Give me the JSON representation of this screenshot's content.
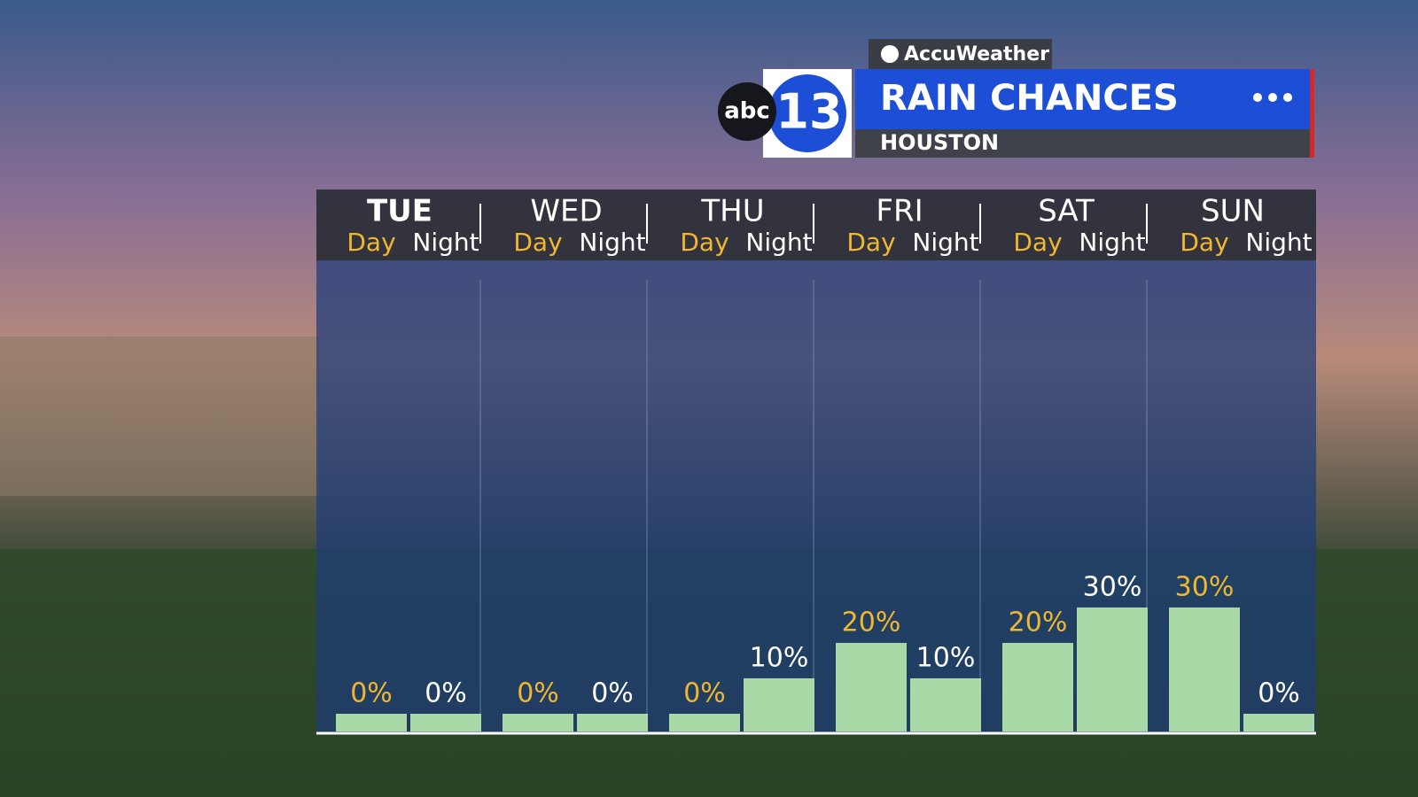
{
  "branding": {
    "provider": "AccuWeather",
    "network": "abc",
    "channel": "13"
  },
  "chart_data": {
    "type": "bar",
    "title": "RAIN CHANCES",
    "subtitle": "HOUSTON",
    "days": [
      "TUE",
      "WED",
      "THU",
      "FRI",
      "SAT",
      "SUN"
    ],
    "categories": [
      "Day",
      "Night",
      "Day",
      "Night",
      "Day",
      "Night",
      "Day",
      "Night",
      "Day",
      "Night",
      "Day",
      "Night"
    ],
    "values": [
      0,
      0,
      0,
      0,
      0,
      10,
      20,
      10,
      20,
      30,
      30,
      0
    ],
    "value_labels": [
      "0%",
      "0%",
      "0%",
      "0%",
      "0%",
      "10%",
      "20%",
      "10%",
      "20%",
      "30%",
      "30%",
      "0%"
    ],
    "color": "#a9d9a6"
  }
}
